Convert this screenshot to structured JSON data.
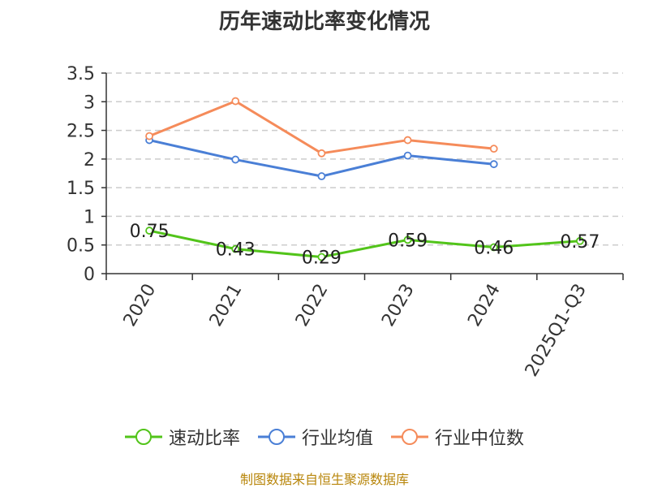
{
  "title": "历年速动比率变化情况",
  "source": "制图数据来自恒生聚源数据库",
  "colors": {
    "axis": "#333333",
    "grid": "#cccccc",
    "quick_ratio": "#52c41a",
    "industry_avg": "#4a7fd6",
    "industry_median": "#f58b5a"
  },
  "chart_data": {
    "type": "line",
    "categories": [
      "2020",
      "2021",
      "2022",
      "2023",
      "2024",
      "2025Q1-Q3"
    ],
    "ylim": [
      0,
      3.5
    ],
    "yticks": [
      "0",
      "0.5",
      "1",
      "1.5",
      "2",
      "2.5",
      "3",
      "3.5"
    ],
    "grid": true,
    "legend_position": "bottom",
    "series": [
      {
        "name": "速动比率",
        "color_key": "quick_ratio",
        "values": [
          0.75,
          0.43,
          0.29,
          0.59,
          0.46,
          0.57
        ],
        "labels": [
          "0.75",
          "0.43",
          "0.29",
          "0.59",
          "0.46",
          "0.57"
        ],
        "show_labels": true
      },
      {
        "name": "行业均值",
        "color_key": "industry_avg",
        "values": [
          2.33,
          1.99,
          1.7,
          2.06,
          1.91,
          null
        ],
        "show_labels": false
      },
      {
        "name": "行业中位数",
        "color_key": "industry_median",
        "values": [
          2.4,
          3.01,
          2.1,
          2.33,
          2.18,
          null
        ],
        "show_labels": false
      }
    ]
  }
}
